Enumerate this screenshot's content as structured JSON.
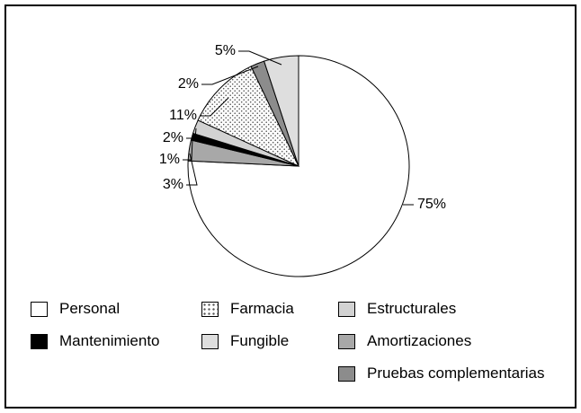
{
  "chart_data": {
    "type": "pie",
    "title": "",
    "legend_position": "bottom",
    "start_angle_deg": 0,
    "direction": "clockwise",
    "slices": [
      {
        "name": "Personal",
        "value": 75,
        "label": "75%",
        "fill": "#ffffff",
        "pattern": "solid"
      },
      {
        "name": "Amortizaciones",
        "value": 3,
        "label": "3%",
        "fill": "#a8a8a8",
        "pattern": "solid"
      },
      {
        "name": "Mantenimiento",
        "value": 1,
        "label": "1%",
        "fill": "#000000",
        "pattern": "solid"
      },
      {
        "name": "Estructurales",
        "value": 2,
        "label": "2%",
        "fill": "#d2d2d2",
        "pattern": "solid"
      },
      {
        "name": "Farmacia",
        "value": 11,
        "label": "11%",
        "fill": "#ffffff",
        "pattern": "dots"
      },
      {
        "name": "Pruebas complementarias",
        "value": 2,
        "label": "2%",
        "fill": "#8c8c8c",
        "pattern": "solid"
      },
      {
        "name": "Fungible",
        "value": 5,
        "label": "5%",
        "fill": "#dedede",
        "pattern": "solid"
      }
    ],
    "legend": [
      {
        "name": "Personal",
        "fill": "#ffffff",
        "pattern": "solid"
      },
      {
        "name": "Mantenimiento",
        "fill": "#000000",
        "pattern": "solid"
      },
      {
        "name": "Farmacia",
        "fill": "#ffffff",
        "pattern": "dots"
      },
      {
        "name": "Fungible",
        "fill": "#dedede",
        "pattern": "solid"
      },
      {
        "name": "Estructurales",
        "fill": "#d2d2d2",
        "pattern": "solid"
      },
      {
        "name": "Amortizaciones",
        "fill": "#a8a8a8",
        "pattern": "solid"
      },
      {
        "name": "Pruebas complementarias",
        "fill": "#8c8c8c",
        "pattern": "solid"
      }
    ]
  }
}
